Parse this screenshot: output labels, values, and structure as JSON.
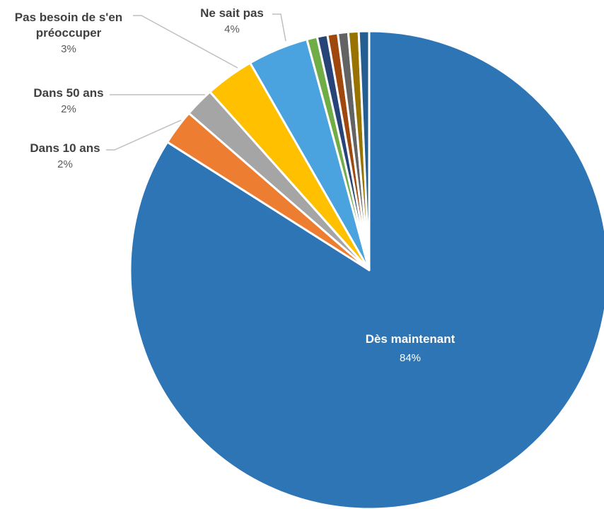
{
  "chart_data": {
    "type": "pie",
    "start_angle_deg": 0,
    "direction": "clockwise",
    "slices": [
      {
        "label": "Dès maintenant",
        "pct_label": "84%",
        "value": 84.0,
        "color": "#2E75B6"
      },
      {
        "label": "Dans 10 ans",
        "pct_label": "2%",
        "value": 2.4,
        "color": "#ED7D31"
      },
      {
        "label": "Dans 50 ans",
        "pct_label": "2%",
        "value": 2.0,
        "color": "#A5A5A5"
      },
      {
        "label": "Pas besoin de s'en préoccuper",
        "label_lines": [
          "Pas besoin de s'en",
          "préoccuper"
        ],
        "pct_label": "3%",
        "value": 3.3,
        "color": "#FFC000"
      },
      {
        "label": "Ne sait pas",
        "pct_label": "4%",
        "value": 4.1,
        "color": "#4AA3DF"
      },
      {
        "label": "",
        "pct_label": "",
        "value": 0.7,
        "color": "#70AD47"
      },
      {
        "label": "",
        "pct_label": "",
        "value": 0.7,
        "color": "#264478"
      },
      {
        "label": "",
        "pct_label": "",
        "value": 0.7,
        "color": "#9E480E"
      },
      {
        "label": "",
        "pct_label": "",
        "value": 0.7,
        "color": "#636363"
      },
      {
        "label": "",
        "pct_label": "",
        "value": 0.7,
        "color": "#997300"
      },
      {
        "label": "",
        "pct_label": "",
        "value": 0.7,
        "color": "#255E91"
      }
    ]
  }
}
